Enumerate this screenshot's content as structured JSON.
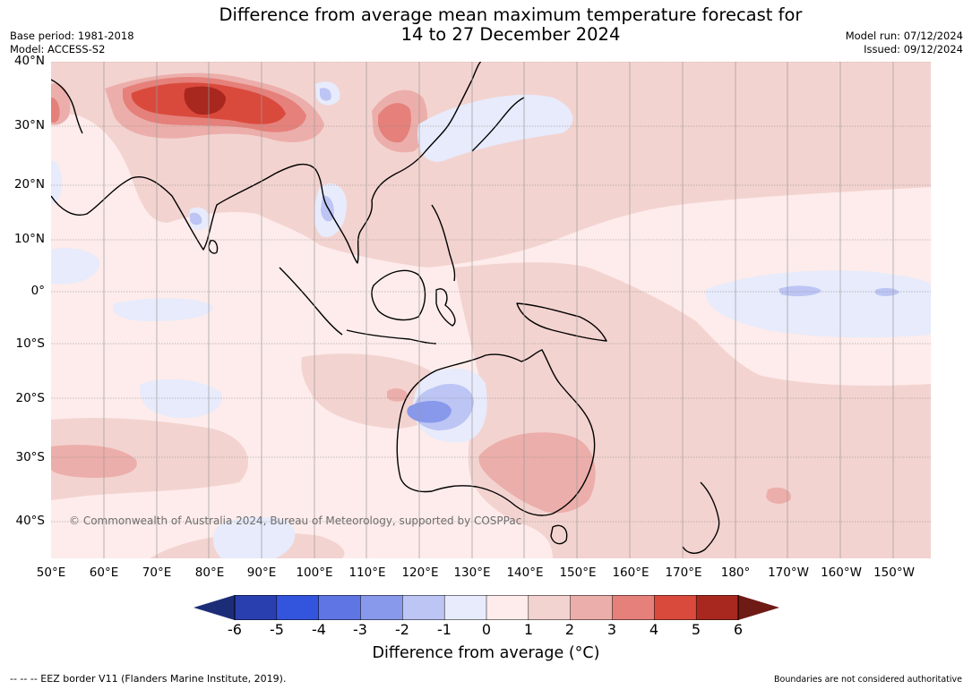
{
  "header": {
    "title_line1": "Difference from average mean maximum temperature forecast for",
    "title_line2": "14 to 27 December 2024",
    "base_period": "Base period: 1981-2018",
    "model": "Model: ACCESS-S2",
    "model_run": "Model run: 07/12/2024",
    "issued": "Issued: 09/12/2024"
  },
  "map": {
    "lon_ticks": [
      "50°E",
      "60°E",
      "70°E",
      "80°E",
      "90°E",
      "100°E",
      "110°E",
      "120°E",
      "130°E",
      "140°E",
      "150°E",
      "160°E",
      "170°E",
      "180°",
      "170°W",
      "160°W",
      "150°W"
    ],
    "lat_ticks": [
      "40°N",
      "30°N",
      "20°N",
      "10°N",
      "0°",
      "10°S",
      "20°S",
      "30°S",
      "40°S"
    ],
    "copyright": "© Commonwealth of Australia 2024, Bureau of Meteorology, supported by COSPPac"
  },
  "colorbar": {
    "tick_labels": [
      "-6",
      "-5",
      "-4",
      "-3",
      "-2",
      "-1",
      "0",
      "1",
      "2",
      "3",
      "4",
      "5",
      "6"
    ],
    "colors": [
      "#2a3faf",
      "#3355dd",
      "#5f75e3",
      "#8898ea",
      "#bcc5f4",
      "#e7ebfb",
      "#fdeceb",
      "#f3d3d0",
      "#ecaeaa",
      "#e5807a",
      "#d94a3d",
      "#a8281f"
    ],
    "under_color": "#1c2d78",
    "over_color": "#6e1a15",
    "title": "Difference from average (°C)"
  },
  "footer": {
    "eez_note": "--  --  -- EEZ border V11 (Flanders Marine Institute, 2019).",
    "disclaimer": "Boundaries are not considered authoritative"
  }
}
